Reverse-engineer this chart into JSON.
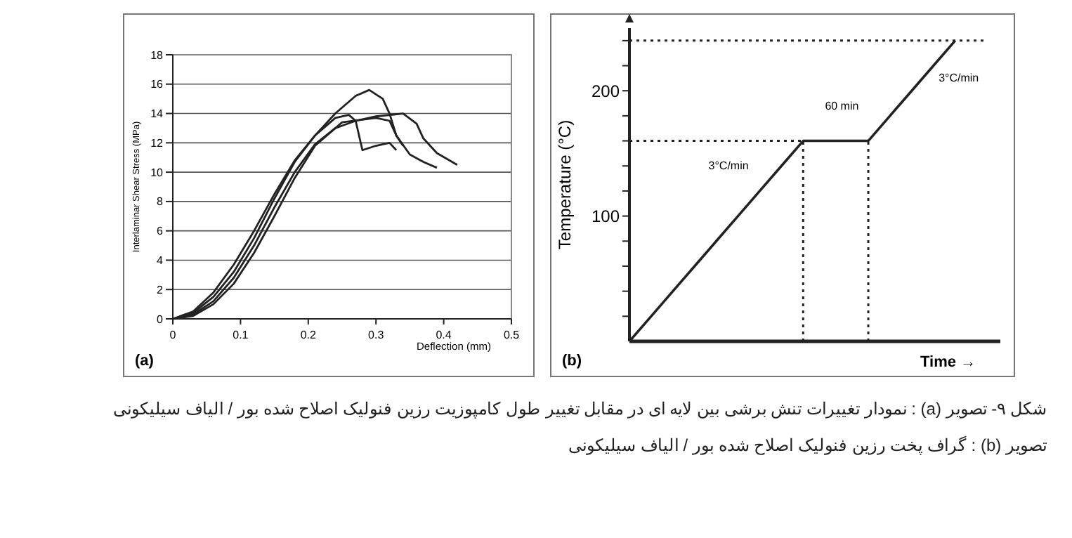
{
  "chart_data": [
    {
      "type": "line",
      "xlabel": "Deflection (mm)",
      "ylabel": "Interlaminar Shear Stress (MPa)",
      "xlim": [
        0,
        0.5
      ],
      "xticks": [
        0,
        0.1,
        0.2,
        0.3,
        0.4,
        0.5
      ],
      "ylim": [
        0,
        18
      ],
      "yticks": [
        0,
        2,
        4,
        6,
        8,
        10,
        12,
        14,
        16,
        18
      ],
      "grid": "y",
      "marker": "none",
      "line_style": "solid",
      "series": [
        {
          "color": "#222222",
          "x": [
            0,
            0.03,
            0.06,
            0.09,
            0.12,
            0.15,
            0.18,
            0.21,
            0.24,
            0.27,
            0.29,
            0.31,
            0.32,
            0.33,
            0.35,
            0.37,
            0.39
          ],
          "values": [
            0,
            0.5,
            1.8,
            3.7,
            6,
            8.5,
            10.8,
            12.5,
            14,
            15.2,
            15.6,
            15,
            14,
            12.5,
            11.2,
            10.7,
            10.3
          ]
        },
        {
          "color": "#222222",
          "x": [
            0,
            0.03,
            0.06,
            0.09,
            0.12,
            0.15,
            0.18,
            0.21,
            0.24,
            0.27,
            0.3,
            0.34,
            0.36,
            0.37,
            0.39,
            0.42
          ],
          "values": [
            0,
            0.3,
            1.2,
            2.8,
            5,
            7.6,
            10,
            11.9,
            13,
            13.5,
            13.8,
            14,
            13.3,
            12.3,
            11.3,
            10.5
          ]
        },
        {
          "color": "#222222",
          "x": [
            0,
            0.03,
            0.06,
            0.09,
            0.12,
            0.15,
            0.18,
            0.21,
            0.24,
            0.26,
            0.27,
            0.28,
            0.3,
            0.32,
            0.33
          ],
          "values": [
            0,
            0.4,
            1.5,
            3.2,
            5.5,
            8.2,
            10.7,
            12.5,
            13.7,
            13.9,
            13.5,
            11.5,
            11.8,
            12,
            11.5
          ]
        },
        {
          "color": "#222222",
          "x": [
            0,
            0.03,
            0.06,
            0.09,
            0.12,
            0.15,
            0.18,
            0.21,
            0.25,
            0.3,
            0.32,
            0.33,
            0.34
          ],
          "values": [
            0,
            0.2,
            1,
            2.4,
            4.5,
            7,
            9.6,
            11.8,
            13.4,
            13.7,
            13.5,
            12.5,
            11.8
          ]
        }
      ],
      "annotations": [
        "(a)",
        "شکل ۹- تصویر (a) : نمودار تغییرات تنش برشی بین لایه ای در مقابل تغییر طول کامپوزیت رزین فنولیک اصلاح شده بور / الیاف سیلیکونی"
      ]
    },
    {
      "type": "line",
      "xlabel": "Time →",
      "ylabel": "Temperature (°C)",
      "categories": [
        null,
        null,
        null,
        null,
        null,
        null,
        null,
        null,
        null,
        null,
        null,
        null,
        null,
        null,
        null,
        null
      ],
      "ylim": [
        0,
        250
      ],
      "yticks": [
        {
          "value": 20,
          "label": null
        },
        {
          "value": 40,
          "label": null
        },
        {
          "value": 60,
          "label": null
        },
        {
          "value": 80,
          "label": null
        },
        {
          "value": 100,
          "label": "100"
        },
        {
          "value": 120,
          "label": null
        },
        {
          "value": 140,
          "label": null
        },
        {
          "value": 160,
          "label": null
        },
        {
          "value": 180,
          "label": null
        },
        {
          "value": 200,
          "label": "200"
        },
        {
          "value": 220,
          "label": null
        },
        {
          "value": 240,
          "label": null
        }
      ],
      "tick_labels": "y",
      "marker": "none",
      "line_style": "solid",
      "series": [
        {
          "color": "#222222",
          "values": [
            0,
            20,
            40,
            60,
            80,
            100,
            120,
            140,
            160,
            160,
            160,
            160,
            180,
            200,
            220,
            240
          ]
        }
      ],
      "ref_lines": [
        {
          "axis": "y",
          "value": 160,
          "line_style": "dotted"
        },
        {
          "axis": "y",
          "value": 240,
          "line_style": "dotted"
        }
      ],
      "annotations": [
        "(b)",
        "3°C/min",
        "60 min",
        "3°C/min",
        "تصویر (b) : گراف پخت رزین فنولیک اصلاح شده بور / الیاف سیلیکونی"
      ]
    }
  ]
}
